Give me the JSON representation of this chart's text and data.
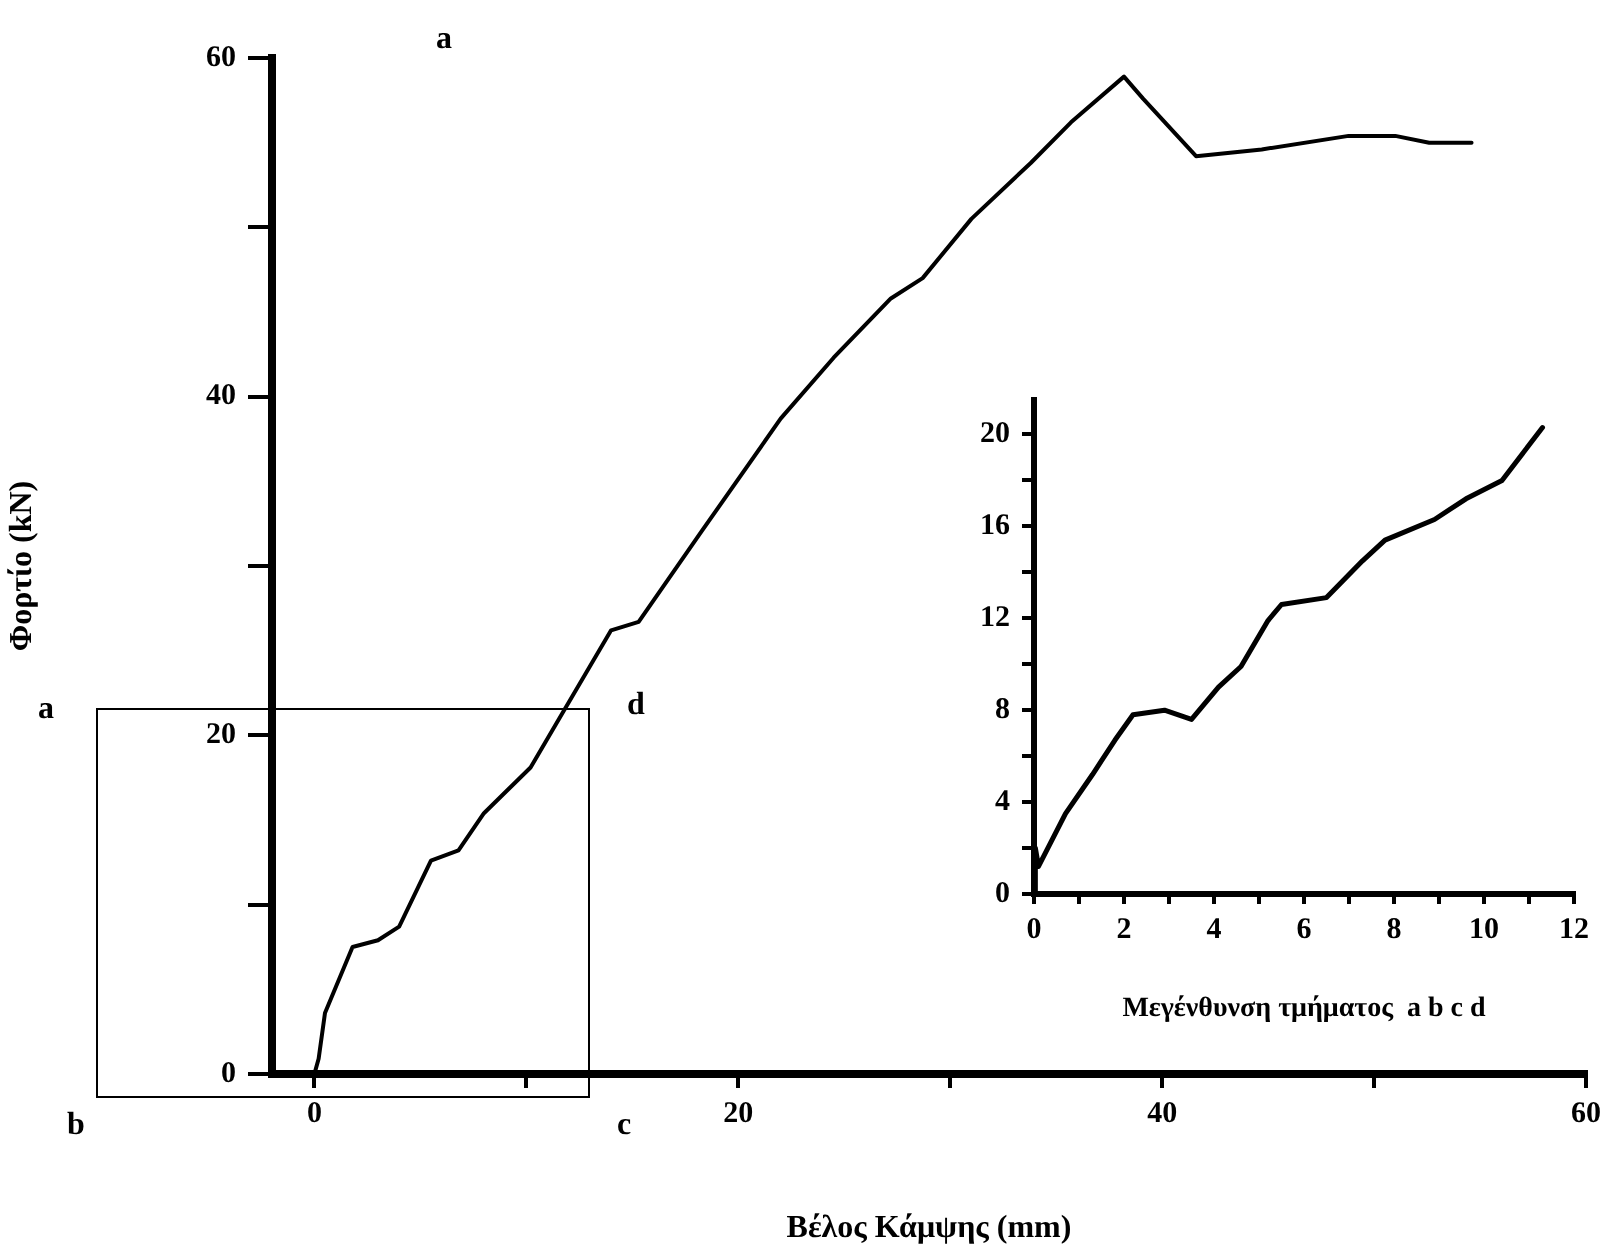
{
  "chart_data": [
    {
      "type": "line",
      "xlabel": "Βέλος Κάμψης (mm)",
      "ylabel": "Φορτίο (kN)",
      "annotations": [
        "a",
        "a",
        "b",
        "c",
        "d"
      ],
      "x": [
        0,
        0.2,
        0.5,
        1.8,
        3.0,
        4.0,
        5.5,
        6.8,
        8.0,
        10.2,
        11.7,
        14.0,
        15.3,
        18.3,
        22.0,
        24.5,
        27.2,
        28.7,
        31.0,
        33.8,
        35.7,
        38.2,
        39.1,
        41.6,
        44.7,
        48.8,
        51.0,
        52.6,
        54.6
      ],
      "series": [
        {
          "color": "#000000",
          "values": [
            0,
            0.9,
            3.6,
            7.5,
            7.9,
            8.7,
            12.6,
            13.2,
            15.4,
            18.1,
            21.3,
            26.2,
            26.7,
            32.1,
            38.7,
            42.3,
            45.8,
            47.0,
            50.5,
            53.8,
            56.2,
            58.9,
            57.6,
            54.2,
            54.6,
            55.4,
            55.4,
            55.0,
            55.0
          ]
        }
      ],
      "xlim": [
        -2,
        60
      ],
      "ylim": [
        0,
        60
      ],
      "xticks": [
        0,
        {
          "value": 10,
          "label": null
        },
        20,
        {
          "value": 30,
          "label": null
        },
        40,
        {
          "value": 50,
          "label": null
        },
        60
      ],
      "yticks": [
        0,
        {
          "value": 10,
          "label": null
        },
        20,
        {
          "value": 30,
          "label": null
        },
        40,
        {
          "value": 50,
          "label": null
        },
        60
      ],
      "grid": false,
      "legend": false,
      "marker": "none",
      "line_style": "solid"
    },
    {
      "type": "line",
      "xlabel": "Μεγένθυνση τμήματος  a b c d",
      "x": [
        0,
        0.03,
        0.1,
        0.7,
        1.3,
        1.8,
        2.2,
        2.9,
        3.5,
        4.1,
        4.6,
        5.2,
        5.5,
        6.5,
        7.3,
        7.8,
        8.9,
        9.6,
        10.4,
        11.3
      ],
      "series": [
        {
          "color": "#000000",
          "values": [
            0,
            2.0,
            1.2,
            3.5,
            5.2,
            6.7,
            7.8,
            8.0,
            7.6,
            9.0,
            9.9,
            11.9,
            12.6,
            12.9,
            14.5,
            15.4,
            16.3,
            17.2,
            18.0,
            20.3
          ]
        }
      ],
      "xlim": [
        0,
        12
      ],
      "ylim": [
        0,
        21.5
      ],
      "xticks": [
        0,
        {
          "value": 1,
          "label": null
        },
        2,
        {
          "value": 3,
          "label": null
        },
        4,
        {
          "value": 5,
          "label": null
        },
        6,
        {
          "value": 7,
          "label": null
        },
        8,
        {
          "value": 9,
          "label": null
        },
        10,
        {
          "value": 11,
          "label": null
        },
        12
      ],
      "yticks": [
        0,
        {
          "value": 2,
          "label": null
        },
        4,
        {
          "value": 6,
          "label": null
        },
        8,
        {
          "value": 10,
          "label": null
        },
        12,
        {
          "value": 14,
          "label": null
        },
        16,
        {
          "value": 18,
          "label": null
        },
        20
      ],
      "grid": false,
      "legend": false,
      "marker": "none",
      "line_style": "solid"
    }
  ]
}
